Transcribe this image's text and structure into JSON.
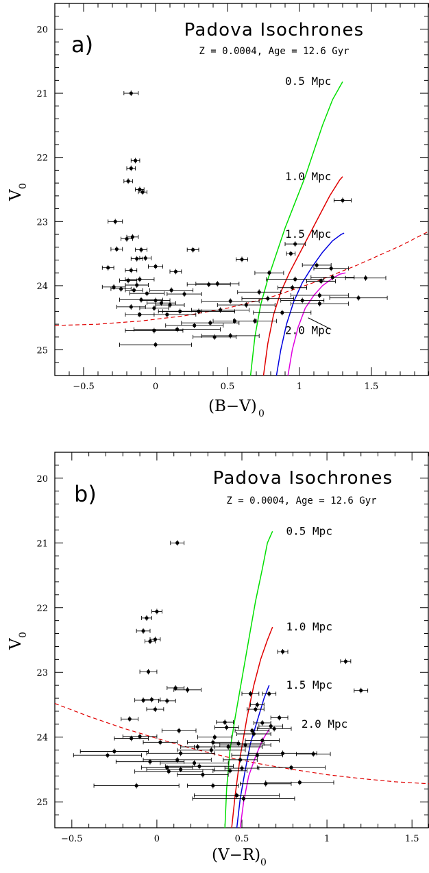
{
  "colors": {
    "iso_0_5": "#00e000",
    "iso_1_0": "#e00000",
    "iso_1_5": "#0000e0",
    "iso_2_0": "#e000e0",
    "dashed_line": "#e00000",
    "points": "#000000"
  },
  "chart_data": [
    {
      "type": "scatter",
      "panel_letter": "a)",
      "title": "Padova Isochrones",
      "subtitle": "Z = 0.0004, Age = 12.6 Gyr",
      "xlabel": "(B−V)",
      "xlabel_sub": "0",
      "ylabel": "V",
      "ylabel_sub": "0",
      "xlim": [
        -0.7,
        1.9
      ],
      "ylim": [
        25.4,
        19.6
      ],
      "y_inverted": true,
      "x_ticks": [
        -0.5,
        0,
        0.5,
        1,
        1.5
      ],
      "x_tick_labels": [
        "−0.5",
        "0",
        "0.5",
        "1",
        "1.5"
      ],
      "y_ticks": [
        20,
        21,
        22,
        23,
        24,
        25
      ],
      "y_tick_labels": [
        "20",
        "21",
        "22",
        "23",
        "24",
        "25"
      ],
      "isochrones": [
        {
          "label": "0.5 Mpc",
          "color": "#00e000",
          "label_at": [
            0.9,
            20.82
          ],
          "x": [
            0.66,
            0.69,
            0.73,
            0.78,
            0.84,
            0.9,
            0.97,
            1.04,
            1.1,
            1.16,
            1.23,
            1.3
          ],
          "y": [
            25.4,
            24.8,
            24.3,
            23.9,
            23.5,
            23.1,
            22.7,
            22.3,
            21.9,
            21.5,
            21.1,
            20.82
          ]
        },
        {
          "label": "1.0 Mpc",
          "color": "#e00000",
          "label_at": [
            0.9,
            22.3
          ],
          "x": [
            0.75,
            0.78,
            0.82,
            0.87,
            0.93,
            1.0,
            1.07,
            1.14,
            1.21,
            1.28,
            1.3
          ],
          "y": [
            25.4,
            24.9,
            24.45,
            24.1,
            23.8,
            23.5,
            23.2,
            22.9,
            22.6,
            22.35,
            22.3
          ]
        },
        {
          "label": "1.5 Mpc",
          "color": "#0000e0",
          "label_at": [
            0.9,
            23.2
          ],
          "x": [
            0.84,
            0.87,
            0.91,
            0.96,
            1.02,
            1.09,
            1.16,
            1.23,
            1.29,
            1.31
          ],
          "y": [
            25.4,
            25.0,
            24.6,
            24.25,
            23.95,
            23.7,
            23.48,
            23.3,
            23.2,
            23.18
          ]
        },
        {
          "label": "2.0 Mpc",
          "color": "#e000e0",
          "label_at": [
            0.9,
            24.7
          ],
          "x": [
            0.92,
            0.95,
            0.99,
            1.04,
            1.1,
            1.16,
            1.22,
            1.28,
            1.32
          ],
          "y": [
            25.4,
            25.0,
            24.65,
            24.35,
            24.15,
            24.0,
            23.9,
            23.82,
            23.8
          ]
        }
      ],
      "label_pointer": {
        "from": [
          1.06,
          24.5
        ],
        "to": [
          1.22,
          24.68
        ]
      },
      "dashed_line": {
        "color": "#e00000",
        "x": [
          -0.7,
          -0.4,
          -0.1,
          0.2,
          0.5,
          0.8,
          1.1,
          1.4,
          1.7,
          1.9
        ],
        "y": [
          24.62,
          24.6,
          24.55,
          24.47,
          24.35,
          24.18,
          23.95,
          23.68,
          23.38,
          23.15
        ]
      },
      "points": [
        {
          "x": -0.17,
          "y": 21.0,
          "xerr": 0.05
        },
        {
          "x": -0.14,
          "y": 22.05,
          "xerr": 0.03
        },
        {
          "x": -0.17,
          "y": 22.17,
          "xerr": 0.03
        },
        {
          "x": -0.19,
          "y": 22.37,
          "xerr": 0.03
        },
        {
          "x": -0.11,
          "y": 22.5,
          "xerr": 0.03
        },
        {
          "x": -0.09,
          "y": 22.54,
          "xerr": 0.03
        },
        {
          "x": -0.28,
          "y": 23.0,
          "xerr": 0.05
        },
        {
          "x": -0.16,
          "y": 23.24,
          "xerr": 0.04
        },
        {
          "x": -0.2,
          "y": 23.27,
          "xerr": 0.04
        },
        {
          "x": -0.27,
          "y": 23.43,
          "xerr": 0.04
        },
        {
          "x": -0.1,
          "y": 23.44,
          "xerr": 0.04
        },
        {
          "x": 0.26,
          "y": 23.44,
          "xerr": 0.04
        },
        {
          "x": -0.13,
          "y": 23.58,
          "xerr": 0.04
        },
        {
          "x": -0.07,
          "y": 23.57,
          "xerr": 0.04
        },
        {
          "x": 0.6,
          "y": 23.59,
          "xerr": 0.04
        },
        {
          "x": 0.97,
          "y": 23.35,
          "xerr": 0.07
        },
        {
          "x": 0.94,
          "y": 23.5,
          "xerr": 0.03
        },
        {
          "x": 1.3,
          "y": 22.67,
          "xerr": 0.06
        },
        {
          "x": -0.33,
          "y": 23.72,
          "xerr": 0.04
        },
        {
          "x": 0.0,
          "y": 23.7,
          "xerr": 0.05
        },
        {
          "x": -0.17,
          "y": 23.76,
          "xerr": 0.04
        },
        {
          "x": 0.14,
          "y": 23.78,
          "xerr": 0.04
        },
        {
          "x": 0.79,
          "y": 23.8,
          "xerr": 0.1
        },
        {
          "x": 1.22,
          "y": 23.73,
          "xerr": 0.12
        },
        {
          "x": 1.12,
          "y": 23.68,
          "xerr": 0.1
        },
        {
          "x": 1.46,
          "y": 23.88,
          "xerr": 0.14
        },
        {
          "x": -0.11,
          "y": 23.9,
          "xerr": 0.1
        },
        {
          "x": -0.19,
          "y": 23.92,
          "xerr": 0.06
        },
        {
          "x": -0.29,
          "y": 24.02,
          "xerr": 0.08
        },
        {
          "x": -0.13,
          "y": 23.99,
          "xerr": 0.08
        },
        {
          "x": 0.37,
          "y": 23.98,
          "xerr": 0.15
        },
        {
          "x": 0.43,
          "y": 23.97,
          "xerr": 0.15
        },
        {
          "x": 0.97,
          "y": 23.9,
          "xerr": 0.2
        },
        {
          "x": 1.23,
          "y": 23.87,
          "xerr": 0.15
        },
        {
          "x": -0.24,
          "y": 24.05,
          "xerr": 0.07
        },
        {
          "x": -0.15,
          "y": 24.07,
          "xerr": 0.06
        },
        {
          "x": 0.11,
          "y": 24.07,
          "xerr": 0.15
        },
        {
          "x": 0.2,
          "y": 24.13,
          "xerr": 0.12
        },
        {
          "x": -0.06,
          "y": 24.12,
          "xerr": 0.12
        },
        {
          "x": 0.72,
          "y": 24.1,
          "xerr": 0.15
        },
        {
          "x": 0.95,
          "y": 24.03,
          "xerr": 0.1
        },
        {
          "x": 1.15,
          "y": 23.93,
          "xerr": 0.1
        },
        {
          "x": -0.1,
          "y": 24.22,
          "xerr": 0.15
        },
        {
          "x": 0.0,
          "y": 24.23,
          "xerr": 0.1
        },
        {
          "x": 0.04,
          "y": 24.27,
          "xerr": 0.1
        },
        {
          "x": 0.1,
          "y": 24.3,
          "xerr": 0.1
        },
        {
          "x": 0.52,
          "y": 24.24,
          "xerr": 0.2
        },
        {
          "x": 0.78,
          "y": 24.2,
          "xerr": 0.18
        },
        {
          "x": 1.02,
          "y": 24.23,
          "xerr": 0.15
        },
        {
          "x": 1.14,
          "y": 24.15,
          "xerr": 0.2
        },
        {
          "x": 1.41,
          "y": 24.19,
          "xerr": 0.2
        },
        {
          "x": -0.17,
          "y": 24.33,
          "xerr": 0.1
        },
        {
          "x": -0.01,
          "y": 24.35,
          "xerr": 0.1
        },
        {
          "x": 0.17,
          "y": 24.4,
          "xerr": 0.15
        },
        {
          "x": 0.3,
          "y": 24.4,
          "xerr": 0.25
        },
        {
          "x": 0.45,
          "y": 24.38,
          "xerr": 0.2
        },
        {
          "x": 0.63,
          "y": 24.3,
          "xerr": 0.2
        },
        {
          "x": 0.88,
          "y": 24.42,
          "xerr": 0.2
        },
        {
          "x": 1.14,
          "y": 24.28,
          "xerr": 0.2
        },
        {
          "x": -0.11,
          "y": 24.45,
          "xerr": 0.1
        },
        {
          "x": 0.08,
          "y": 24.45,
          "xerr": 0.2
        },
        {
          "x": 0.38,
          "y": 24.58,
          "xerr": 0.2
        },
        {
          "x": 0.55,
          "y": 24.55,
          "xerr": 0.15
        },
        {
          "x": 0.69,
          "y": 24.55,
          "xerr": 0.15
        },
        {
          "x": -0.01,
          "y": 24.7,
          "xerr": 0.2
        },
        {
          "x": 0.15,
          "y": 24.68,
          "xerr": 0.3
        },
        {
          "x": 0.41,
          "y": 24.8,
          "xerr": 0.15
        },
        {
          "x": 0.52,
          "y": 24.78,
          "xerr": 0.2
        },
        {
          "x": 0.0,
          "y": 24.92,
          "xerr": 0.25
        },
        {
          "x": 0.27,
          "y": 24.62,
          "xerr": 0.2
        }
      ]
    },
    {
      "type": "scatter",
      "panel_letter": "b)",
      "title": "Padova Isochrones",
      "subtitle": "Z = 0.0004, Age = 12.6 Gyr",
      "xlabel": "(V−R)",
      "xlabel_sub": "0",
      "ylabel": "V",
      "ylabel_sub": "0",
      "xlim": [
        -0.6,
        1.6
      ],
      "ylim": [
        25.4,
        19.6
      ],
      "y_inverted": true,
      "x_ticks": [
        -0.5,
        0,
        0.5,
        1,
        1.5
      ],
      "x_tick_labels": [
        "−0.5",
        "0",
        "0.5",
        "1",
        "1.5"
      ],
      "y_ticks": [
        20,
        21,
        22,
        23,
        24,
        25
      ],
      "y_tick_labels": [
        "20",
        "21",
        "22",
        "23",
        "24",
        "25"
      ],
      "isochrones": [
        {
          "label": "0.5 Mpc",
          "color": "#00e000",
          "label_at": [
            0.76,
            20.82
          ],
          "x": [
            0.4,
            0.41,
            0.43,
            0.46,
            0.5,
            0.54,
            0.58,
            0.62,
            0.65,
            0.68
          ],
          "y": [
            25.4,
            24.8,
            24.2,
            23.7,
            23.1,
            22.5,
            21.9,
            21.4,
            21.0,
            20.82
          ]
        },
        {
          "label": "1.0 Mpc",
          "color": "#e00000",
          "label_at": [
            0.76,
            22.3
          ],
          "x": [
            0.44,
            0.46,
            0.49,
            0.53,
            0.57,
            0.61,
            0.65,
            0.68
          ],
          "y": [
            25.4,
            24.9,
            24.3,
            23.7,
            23.2,
            22.8,
            22.5,
            22.3
          ]
        },
        {
          "label": "1.5 Mpc",
          "color": "#0000e0",
          "label_at": [
            0.76,
            23.2
          ],
          "x": [
            0.47,
            0.49,
            0.52,
            0.55,
            0.59,
            0.63,
            0.66
          ],
          "y": [
            25.4,
            24.95,
            24.5,
            24.1,
            23.75,
            23.4,
            23.2
          ]
        },
        {
          "label": "2.0 Mpc",
          "color": "#e000e0",
          "label_at": [
            0.85,
            23.8
          ],
          "x": [
            0.49,
            0.51,
            0.54,
            0.58,
            0.62,
            0.66
          ],
          "y": [
            25.4,
            25.0,
            24.6,
            24.3,
            24.05,
            23.88
          ]
        }
      ],
      "dashed_line": {
        "color": "#e00000",
        "x": [
          -0.6,
          -0.4,
          -0.2,
          0.0,
          0.2,
          0.4,
          0.6,
          0.8,
          1.0,
          1.2,
          1.4,
          1.6
        ],
        "y": [
          23.48,
          23.68,
          23.86,
          24.02,
          24.17,
          24.3,
          24.41,
          24.5,
          24.58,
          24.64,
          24.69,
          24.72
        ]
      },
      "points": [
        {
          "x": 0.12,
          "y": 21.0,
          "xerr": 0.04
        },
        {
          "x": 0.0,
          "y": 22.06,
          "xerr": 0.03
        },
        {
          "x": -0.06,
          "y": 22.16,
          "xerr": 0.03
        },
        {
          "x": -0.08,
          "y": 22.36,
          "xerr": 0.04
        },
        {
          "x": -0.04,
          "y": 22.52,
          "xerr": 0.03
        },
        {
          "x": -0.01,
          "y": 22.49,
          "xerr": 0.03
        },
        {
          "x": 0.74,
          "y": 22.68,
          "xerr": 0.03
        },
        {
          "x": 1.11,
          "y": 22.83,
          "xerr": 0.03
        },
        {
          "x": -0.05,
          "y": 22.99,
          "xerr": 0.05
        },
        {
          "x": 1.2,
          "y": 23.28,
          "xerr": 0.04
        },
        {
          "x": 0.11,
          "y": 23.24,
          "xerr": 0.05
        },
        {
          "x": 0.18,
          "y": 23.27,
          "xerr": 0.08
        },
        {
          "x": 0.55,
          "y": 23.33,
          "xerr": 0.05
        },
        {
          "x": 0.66,
          "y": 23.33,
          "xerr": 0.04
        },
        {
          "x": -0.08,
          "y": 23.43,
          "xerr": 0.05
        },
        {
          "x": -0.03,
          "y": 23.42,
          "xerr": 0.05
        },
        {
          "x": 0.06,
          "y": 23.44,
          "xerr": 0.05
        },
        {
          "x": 0.59,
          "y": 23.5,
          "xerr": 0.04
        },
        {
          "x": 0.58,
          "y": 23.57,
          "xerr": 0.05
        },
        {
          "x": -0.01,
          "y": 23.57,
          "xerr": 0.05
        },
        {
          "x": -0.16,
          "y": 23.72,
          "xerr": 0.05
        },
        {
          "x": 0.72,
          "y": 23.7,
          "xerr": 0.05
        },
        {
          "x": 0.4,
          "y": 23.77,
          "xerr": 0.05
        },
        {
          "x": 0.62,
          "y": 23.78,
          "xerr": 0.05
        },
        {
          "x": 0.67,
          "y": 23.83,
          "xerr": 0.07
        },
        {
          "x": 0.41,
          "y": 23.85,
          "xerr": 0.07
        },
        {
          "x": 0.13,
          "y": 23.9,
          "xerr": 0.1
        },
        {
          "x": 0.56,
          "y": 23.9,
          "xerr": 0.1
        },
        {
          "x": 0.69,
          "y": 23.87,
          "xerr": 0.1
        },
        {
          "x": -0.1,
          "y": 23.99,
          "xerr": 0.1
        },
        {
          "x": -0.15,
          "y": 24.02,
          "xerr": 0.1
        },
        {
          "x": 0.34,
          "y": 24.0,
          "xerr": 0.1
        },
        {
          "x": 0.57,
          "y": 23.95,
          "xerr": 0.1
        },
        {
          "x": 0.02,
          "y": 24.08,
          "xerr": 0.1
        },
        {
          "x": 0.33,
          "y": 24.08,
          "xerr": 0.15
        },
        {
          "x": 0.48,
          "y": 24.1,
          "xerr": 0.15
        },
        {
          "x": 0.62,
          "y": 24.05,
          "xerr": 0.1
        },
        {
          "x": 0.24,
          "y": 24.15,
          "xerr": 0.1
        },
        {
          "x": 0.42,
          "y": 24.15,
          "xerr": 0.2
        },
        {
          "x": 0.52,
          "y": 24.12,
          "xerr": 0.15
        },
        {
          "x": 0.32,
          "y": 24.2,
          "xerr": 0.2
        },
        {
          "x": -0.25,
          "y": 24.22,
          "xerr": 0.2
        },
        {
          "x": -0.29,
          "y": 24.28,
          "xerr": 0.2
        },
        {
          "x": 0.14,
          "y": 24.25,
          "xerr": 0.2
        },
        {
          "x": 0.74,
          "y": 24.25,
          "xerr": 0.2
        },
        {
          "x": 0.92,
          "y": 24.26,
          "xerr": 0.1
        },
        {
          "x": 0.59,
          "y": 24.28,
          "xerr": 0.15
        },
        {
          "x": -0.04,
          "y": 24.38,
          "xerr": 0.2
        },
        {
          "x": 0.12,
          "y": 24.35,
          "xerr": 0.2
        },
        {
          "x": 0.22,
          "y": 24.4,
          "xerr": 0.2
        },
        {
          "x": 0.49,
          "y": 24.35,
          "xerr": 0.1
        },
        {
          "x": 0.06,
          "y": 24.47,
          "xerr": 0.15
        },
        {
          "x": 0.14,
          "y": 24.5,
          "xerr": 0.2
        },
        {
          "x": 0.25,
          "y": 24.45,
          "xerr": 0.2
        },
        {
          "x": 0.27,
          "y": 24.58,
          "xerr": 0.15
        },
        {
          "x": 0.43,
          "y": 24.52,
          "xerr": 0.1
        },
        {
          "x": 0.5,
          "y": 24.48,
          "xerr": 0.1
        },
        {
          "x": 0.79,
          "y": 24.47,
          "xerr": 0.2
        },
        {
          "x": -0.12,
          "y": 24.75,
          "xerr": 0.25
        },
        {
          "x": 0.07,
          "y": 24.53,
          "xerr": 0.2
        },
        {
          "x": 0.33,
          "y": 24.75,
          "xerr": 0.15
        },
        {
          "x": 0.64,
          "y": 24.72,
          "xerr": 0.15
        },
        {
          "x": 0.84,
          "y": 24.7,
          "xerr": 0.2
        },
        {
          "x": 0.47,
          "y": 24.9,
          "xerr": 0.25
        },
        {
          "x": 0.51,
          "y": 24.95,
          "xerr": 0.3
        }
      ]
    }
  ]
}
